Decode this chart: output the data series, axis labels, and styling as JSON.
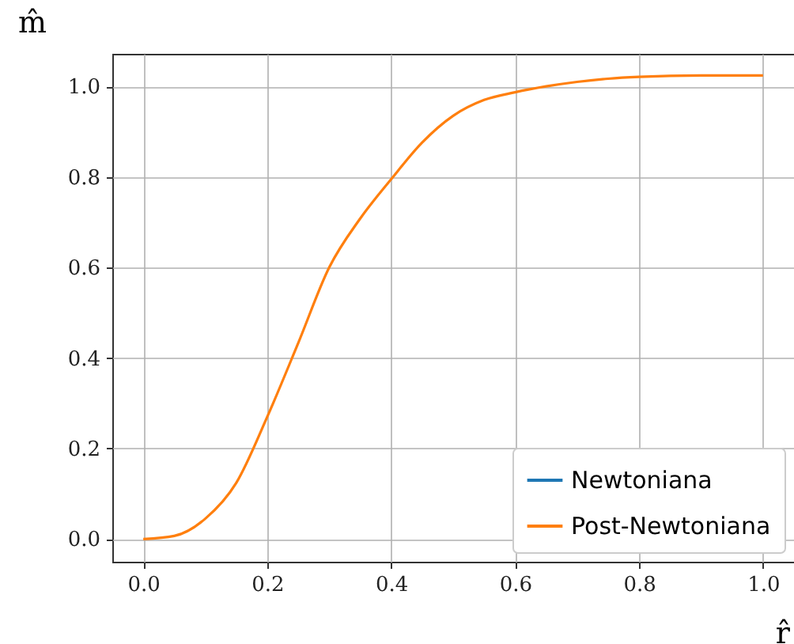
{
  "chart_data": {
    "type": "line",
    "xlabel": "r̂",
    "ylabel": "m̂",
    "x": [
      0,
      0.05,
      0.1,
      0.15,
      0.2,
      0.25,
      0.3,
      0.35,
      0.4,
      0.45,
      0.5,
      0.55,
      0.6,
      0.65,
      0.7,
      0.75,
      0.8,
      0.9,
      1.0
    ],
    "series": [
      {
        "name": "Newtoniana",
        "color": "#1f77b4",
        "values": [
          null,
          null,
          null,
          null,
          null,
          null,
          null,
          null,
          null,
          null,
          null,
          null,
          null,
          null,
          null,
          null,
          null,
          null,
          null
        ]
      },
      {
        "name": "Post-Newtoniana",
        "color": "#ff7f0e",
        "values": [
          0,
          0.007,
          0.045,
          0.124,
          0.27,
          0.433,
          0.6,
          0.708,
          0.795,
          0.876,
          0.935,
          0.97,
          0.987,
          1.0,
          1.01,
          1.017,
          1.021,
          1.024,
          1.024
        ]
      }
    ],
    "xlim": [
      -0.05,
      1.05
    ],
    "ylim": [
      -0.05,
      1.072
    ],
    "xticks": [
      {
        "value": 0,
        "label": "0.0"
      },
      {
        "value": 0.2,
        "label": "0.2"
      },
      {
        "value": 0.4,
        "label": "0.4"
      },
      {
        "value": 0.6,
        "label": "0.6"
      },
      {
        "value": 0.8,
        "label": "0.8"
      },
      {
        "value": 1,
        "label": "1.0"
      }
    ],
    "yticks": [
      {
        "value": 0,
        "label": "0.0"
      },
      {
        "value": 0.2,
        "label": "0.2"
      },
      {
        "value": 0.4,
        "label": "0.4"
      },
      {
        "value": 0.6,
        "label": "0.6"
      },
      {
        "value": 0.8,
        "label": "0.8"
      },
      {
        "value": 1,
        "label": "1.0"
      }
    ],
    "grid": true,
    "legend": "bottom right",
    "marker": "none",
    "line_style": "solid"
  }
}
